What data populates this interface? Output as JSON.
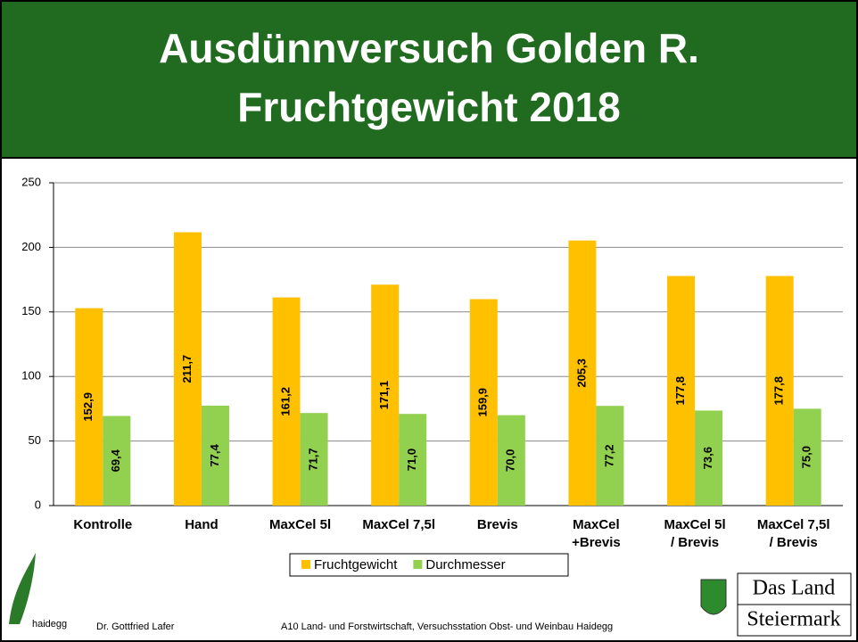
{
  "chart_data": {
    "type": "bar",
    "title": [
      "Ausdünnversuch Golden R.",
      "Fruchtgewicht 2018"
    ],
    "categories": [
      [
        "Kontrolle"
      ],
      [
        "Hand"
      ],
      [
        "MaxCel 5l"
      ],
      [
        "MaxCel 7,5l"
      ],
      [
        "Brevis"
      ],
      [
        "MaxCel",
        "+Brevis"
      ],
      [
        "MaxCel 5l",
        "/ Brevis"
      ],
      [
        "MaxCel 7,5l",
        "/ Brevis"
      ]
    ],
    "series": [
      {
        "name": "Fruchtgewicht",
        "color": "#ffc000",
        "values": [
          152.9,
          211.7,
          161.2,
          171.1,
          159.9,
          205.3,
          177.8,
          177.8
        ],
        "value_labels": [
          "152,9",
          "211,7",
          "161,2",
          "171,1",
          "159,9",
          "205,3",
          "177,8",
          "177,8"
        ]
      },
      {
        "name": "Durchmesser",
        "color": "#92d050",
        "values": [
          69.4,
          77.4,
          71.7,
          71.0,
          70.0,
          77.2,
          73.6,
          75.0
        ],
        "value_labels": [
          "69,4",
          "77,4",
          "71,7",
          "71,0",
          "70,0",
          "77,2",
          "73,6",
          "75,0"
        ]
      }
    ],
    "ylim": [
      0,
      250
    ],
    "yticks": [
      0,
      50,
      100,
      150,
      200,
      250
    ],
    "grid": true,
    "legend": "bottom"
  },
  "footer": {
    "logo": "haidegg",
    "author": "Dr. Gottfried Lafer",
    "institution": "A10 Land- und Forstwirtschaft, Versuchsstation Obst- und Weinbau Haidegg",
    "brand": [
      "Das Land",
      "Steiermark"
    ]
  }
}
